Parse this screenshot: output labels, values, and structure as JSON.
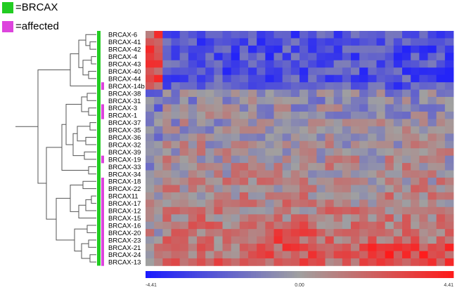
{
  "legend": {
    "items": [
      {
        "label": "=BRCAX",
        "color": "#22cc22"
      },
      {
        "label": "=affected",
        "color": "#dd44dd"
      }
    ]
  },
  "chart_data": {
    "type": "heatmap",
    "title": "",
    "xlabel": "",
    "ylabel": "",
    "rows": [
      "BRCAX-6",
      "BRCAX-41",
      "BRCAX-42",
      "BRCAX-4",
      "BRCAX-43",
      "BRCAX-40",
      "BRCAX-44",
      "BRCAX-14b",
      "BRCAX-38",
      "BRCAX-31",
      "BRCAX-3",
      "BRCAX-1",
      "BRCAX-37",
      "BRCAX-35",
      "BRCAX-36",
      "BRCAX-32",
      "BRCAX-39",
      "BRCAX-19",
      "BRCAX-33",
      "BRCAX-34",
      "BRCAX-18",
      "BRCAX-22",
      "BRCAX11",
      "BRCAX-17",
      "BRCAX-12",
      "BRCAX-15",
      "BRCAX-16",
      "BRCAX-20",
      "BRCAX-23",
      "BRCAX-21",
      "BRCAX-24",
      "BRCAX-13"
    ],
    "affected": [
      false,
      false,
      false,
      false,
      false,
      false,
      false,
      true,
      false,
      false,
      true,
      true,
      false,
      false,
      false,
      false,
      false,
      true,
      false,
      false,
      true,
      true,
      true,
      true,
      true,
      true,
      true,
      true,
      true,
      true,
      true,
      true
    ],
    "colorscale": {
      "min": -4.41,
      "mid": 0.0,
      "max": 4.41,
      "low_color": "#1a1aff",
      "mid_color": "#a0a0a0",
      "high_color": "#ff1a1a",
      "tick_labels": [
        "-4.41",
        "0.00",
        "4.41"
      ]
    }
  }
}
